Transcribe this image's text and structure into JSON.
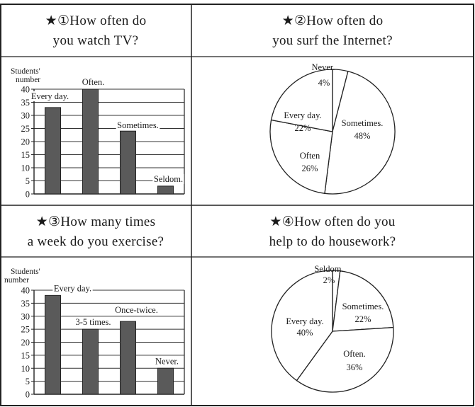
{
  "questions": [
    {
      "title_line1": "★①How often do",
      "title_line2": "you watch TV?"
    },
    {
      "title_line1": "★②How often do",
      "title_line2": "you surf the Internet?"
    },
    {
      "title_line1": "★③How many times",
      "title_line2": "a week do you exercise?"
    },
    {
      "title_line1": "★④How often do you",
      "title_line2": "help to do housework?"
    }
  ],
  "chart_data": [
    {
      "type": "bar",
      "ylabel_line1": "Students'",
      "ylabel_line2": "number",
      "categories": [
        "Every day.",
        "Often.",
        "Sometimes.",
        "Seldom."
      ],
      "values": [
        33,
        40,
        24,
        3
      ],
      "ylim": [
        0,
        40
      ],
      "yticks": [
        "0",
        "5",
        "10",
        "15",
        "20",
        "25",
        "30",
        "35",
        "40"
      ],
      "grid": true
    },
    {
      "type": "pie",
      "slices": [
        {
          "label": "Never.",
          "value": 4,
          "text": "4%"
        },
        {
          "label": "Sometimes.",
          "value": 48,
          "text": "48%"
        },
        {
          "label": "Often",
          "value": 26,
          "text": "26%"
        },
        {
          "label": "Every day.",
          "value": 22,
          "text": "22%"
        }
      ]
    },
    {
      "type": "bar",
      "ylabel_line1": "Students'",
      "ylabel_line2": "number",
      "categories": [
        "Every day.",
        "3-5 times.",
        "Once-twice.",
        "Never."
      ],
      "values": [
        38,
        25,
        28,
        10
      ],
      "ylim": [
        0,
        40
      ],
      "yticks": [
        "0",
        "5",
        "10",
        "15",
        "20",
        "25",
        "30",
        "35",
        "40"
      ],
      "grid": true
    },
    {
      "type": "pie",
      "slices": [
        {
          "label": "Seldom.",
          "value": 2,
          "text": "2%"
        },
        {
          "label": "Sometimes.",
          "value": 22,
          "text": "22%"
        },
        {
          "label": "Often.",
          "value": 36,
          "text": "36%"
        },
        {
          "label": "Every day.",
          "value": 40,
          "text": "40%"
        }
      ]
    }
  ]
}
